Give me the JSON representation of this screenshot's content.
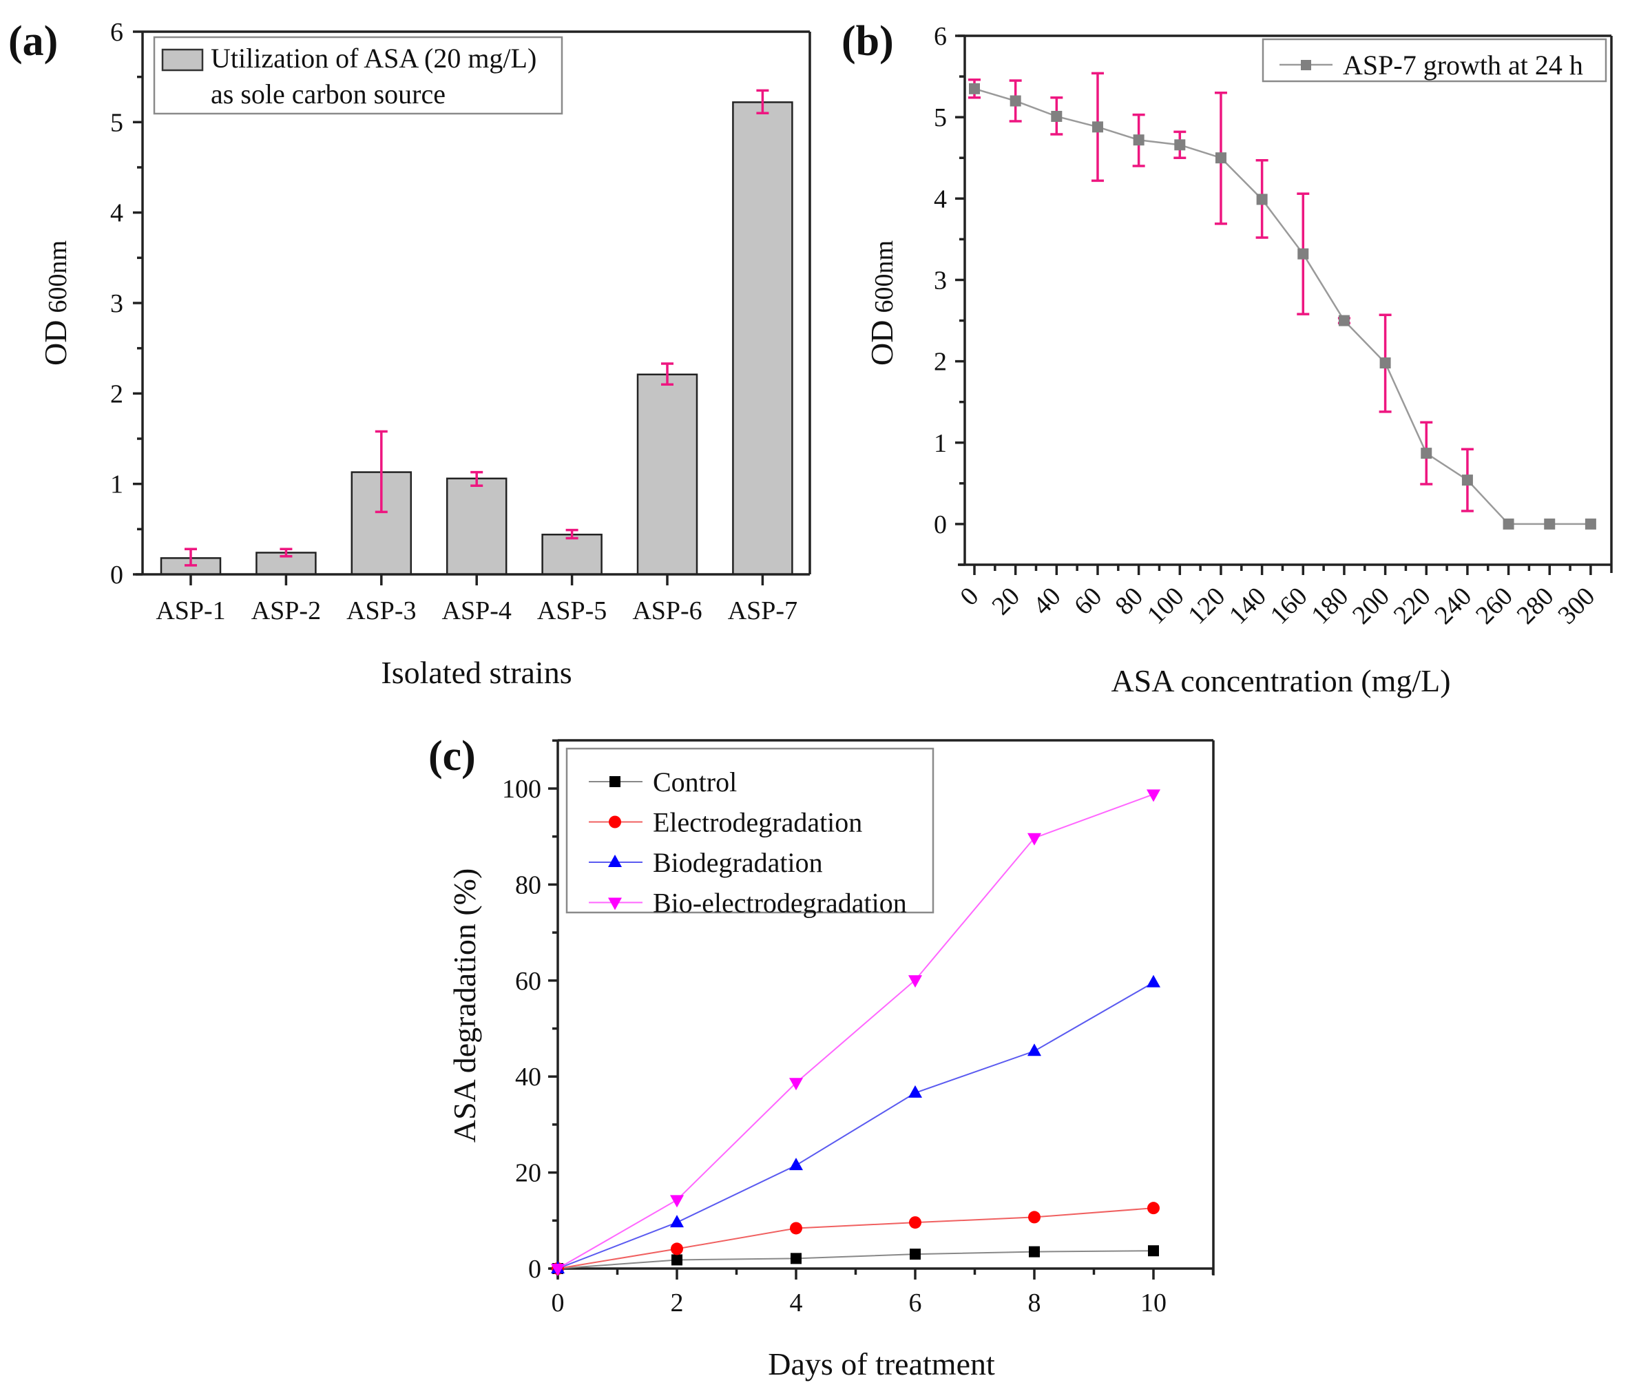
{
  "figure": {
    "panels": [
      "(a)",
      "(b)",
      "(c)"
    ]
  },
  "colors": {
    "bar_fill": "#c4c4c4",
    "bar_stroke": "#222222",
    "error_bar": "#ee1680",
    "series_gray": "#808080",
    "line_gray": "#9a9a9a",
    "control": "#000000",
    "electro": "#ff0000",
    "bio": "#0000ff",
    "bioelectro": "#ff00ff"
  },
  "chart_data": [
    {
      "id": "a",
      "panel_label": "(a)",
      "type": "bar",
      "title": "",
      "xlabel": "Isolated strains",
      "ylabel_main": "OD",
      "ylabel_sub": "600nm",
      "ylim": [
        0,
        6
      ],
      "yticks": [
        0,
        1,
        2,
        3,
        4,
        5,
        6
      ],
      "yticks_minor_step": 0.5,
      "grid": false,
      "legend": {
        "position": "top-left",
        "lines": [
          "Utilization of ASA (20 mg/L)",
          "as sole carbon source"
        ]
      },
      "categories": [
        "ASP-1",
        "ASP-2",
        "ASP-3",
        "ASP-4",
        "ASP-5",
        "ASP-6",
        "ASP-7"
      ],
      "values": [
        0.18,
        0.24,
        1.13,
        1.06,
        0.44,
        2.21,
        5.22
      ],
      "error_low": [
        0.1,
        0.2,
        0.69,
        0.98,
        0.4,
        2.1,
        5.1
      ],
      "error_high": [
        0.28,
        0.28,
        1.58,
        1.13,
        0.49,
        2.33,
        5.35
      ]
    },
    {
      "id": "b",
      "panel_label": "(b)",
      "type": "line",
      "title": "",
      "xlabel": "ASA concentration (mg/L)",
      "ylabel_main": "OD",
      "ylabel_sub": "600nm",
      "xlim": [
        -5,
        310
      ],
      "ylim": [
        -0.5,
        6
      ],
      "xticks": [
        0,
        20,
        40,
        60,
        80,
        100,
        120,
        140,
        160,
        180,
        200,
        220,
        240,
        260,
        280,
        300
      ],
      "xtick_rotation_deg": -45,
      "yticks": [
        0,
        1,
        2,
        3,
        4,
        5,
        6
      ],
      "grid": false,
      "legend": {
        "position": "top-right",
        "entries": [
          "ASP-7 growth at 24 h"
        ]
      },
      "series": [
        {
          "name": "ASP-7 growth at 24 h",
          "marker": "square",
          "x": [
            0,
            20,
            40,
            60,
            80,
            100,
            120,
            140,
            160,
            180,
            200,
            220,
            240,
            260,
            280,
            300
          ],
          "y": [
            5.35,
            5.2,
            5.01,
            4.88,
            4.72,
            4.66,
            4.5,
            3.99,
            3.32,
            2.5,
            1.98,
            0.87,
            0.54,
            0,
            0,
            0
          ],
          "error_low": [
            5.24,
            4.95,
            4.79,
            4.22,
            4.4,
            4.5,
            3.69,
            3.52,
            2.58,
            2.47,
            1.38,
            0.49,
            0.16,
            null,
            null,
            null
          ],
          "error_high": [
            5.46,
            5.45,
            5.24,
            5.54,
            5.03,
            4.82,
            5.3,
            4.47,
            4.06,
            2.53,
            2.57,
            1.25,
            0.92,
            null,
            null,
            null
          ]
        }
      ]
    },
    {
      "id": "c",
      "panel_label": "(c)",
      "type": "line",
      "title": "",
      "xlabel": "Days of treatment",
      "ylabel": "ASA degradation (%)",
      "xlim": [
        0,
        11
      ],
      "ylim": [
        0,
        110
      ],
      "xticks": [
        0,
        2,
        4,
        6,
        8,
        10
      ],
      "yticks": [
        0,
        20,
        40,
        60,
        80,
        100
      ],
      "grid": false,
      "legend": {
        "position": "top-left",
        "entries": [
          "Control",
          "Electrodegradation",
          "Biodegradation",
          "Bio-electrodegradation"
        ]
      },
      "x": [
        0,
        2,
        4,
        6,
        8,
        10
      ],
      "series": [
        {
          "name": "Control",
          "marker": "square",
          "color_key": "control",
          "values": [
            0,
            1.8,
            2.1,
            3.0,
            3.5,
            3.7
          ]
        },
        {
          "name": "Electrodegradation",
          "marker": "circle",
          "color_key": "electro",
          "values": [
            0,
            4.1,
            8.4,
            9.6,
            10.7,
            12.6
          ]
        },
        {
          "name": "Biodegradation",
          "marker": "triangle-up",
          "color_key": "bio",
          "values": [
            0,
            9.6,
            21.5,
            36.6,
            45.3,
            59.6
          ]
        },
        {
          "name": "Bio-electrodegradation",
          "marker": "triangle-down",
          "color_key": "bioelectro",
          "values": [
            0,
            14.3,
            38.7,
            60.1,
            89.7,
            98.8
          ]
        }
      ]
    }
  ]
}
